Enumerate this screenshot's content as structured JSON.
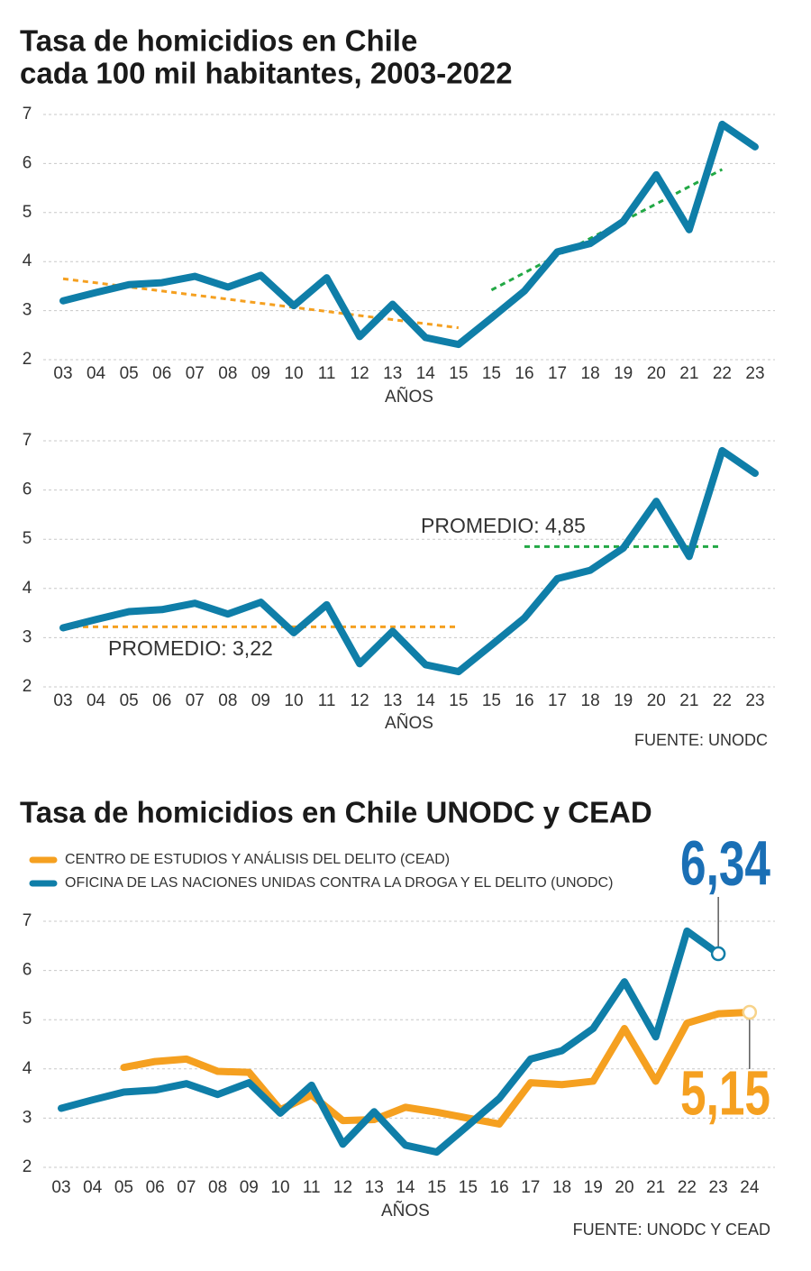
{
  "chart_data": [
    {
      "type": "line",
      "title": [
        "Tasa de homicidios en Chile",
        "cada 100 mil habitantes, 2003-2022"
      ],
      "xlabel": "AÑOS",
      "categories": [
        "03",
        "04",
        "05",
        "06",
        "07",
        "08",
        "09",
        "10",
        "11",
        "12",
        "13",
        "14",
        "15",
        "15",
        "16",
        "17",
        "18",
        "19",
        "20",
        "21",
        "22",
        "23"
      ],
      "series": [
        {
          "color": "#0f7ea8",
          "values": [
            3.2,
            3.37,
            3.53,
            3.57,
            3.7,
            3.48,
            3.72,
            3.1,
            3.67,
            2.47,
            3.13,
            2.45,
            2.31,
            2.85,
            3.4,
            4.2,
            4.37,
            4.82,
            5.77,
            4.65,
            6.8,
            6.34
          ]
        }
      ],
      "trend_lines": [
        {
          "color": "#f5a020",
          "from": 0,
          "to": 12,
          "values": [
            3.65,
            2.65
          ]
        },
        {
          "color": "#22a845",
          "from": 13,
          "to": 20,
          "values": [
            3.42,
            5.88
          ]
        }
      ],
      "ylim": [
        2,
        7
      ],
      "yticks": [
        2,
        3,
        4,
        5,
        6,
        7
      ],
      "grid": true
    },
    {
      "type": "line",
      "xlabel": "AÑOS",
      "categories": [
        "03",
        "04",
        "05",
        "06",
        "07",
        "08",
        "09",
        "10",
        "11",
        "12",
        "13",
        "14",
        "15",
        "15",
        "16",
        "17",
        "18",
        "19",
        "20",
        "21",
        "22",
        "23"
      ],
      "series": [
        {
          "color": "#0f7ea8",
          "values": [
            3.2,
            3.37,
            3.53,
            3.57,
            3.7,
            3.48,
            3.72,
            3.1,
            3.67,
            2.47,
            3.13,
            2.45,
            2.31,
            2.85,
            3.4,
            4.2,
            4.37,
            4.82,
            5.77,
            4.65,
            6.8,
            6.34
          ]
        }
      ],
      "averages": [
        {
          "label": "PROMEDIO: 3,22",
          "value": 3.22,
          "from": 0,
          "to": 12,
          "color": "#f5a020"
        },
        {
          "label": "PROMEDIO: 4,85",
          "value": 4.85,
          "from": 14,
          "to": 20,
          "color": "#22a845"
        }
      ],
      "source": "FUENTE: UNODC",
      "ylim": [
        2,
        7
      ],
      "yticks": [
        2,
        3,
        4,
        5,
        6,
        7
      ],
      "grid": true
    },
    {
      "type": "line",
      "title": "Tasa de homicidios en Chile UNODC y CEAD",
      "xlabel": "AÑOS",
      "categories": [
        "03",
        "04",
        "05",
        "06",
        "07",
        "08",
        "09",
        "10",
        "11",
        "12",
        "13",
        "14",
        "15",
        "15",
        "16",
        "17",
        "18",
        "19",
        "20",
        "21",
        "22",
        "23",
        "24"
      ],
      "series": [
        {
          "name": "CENTRO DE ESTUDIOS Y ANÁLISIS DEL DELITO (CEAD)",
          "color": "#f5a020",
          "values": [
            null,
            null,
            4.03,
            4.15,
            4.2,
            3.95,
            3.93,
            3.17,
            3.47,
            2.95,
            2.97,
            3.22,
            3.12,
            3.0,
            2.88,
            3.72,
            3.68,
            3.75,
            4.82,
            3.75,
            4.93,
            5.12,
            5.15
          ],
          "value_labels": [
            null,
            null,
            null,
            null,
            null,
            null,
            null,
            null,
            null,
            null,
            null,
            null,
            null,
            null,
            null,
            null,
            null,
            null,
            null,
            null,
            null,
            null,
            "5,15"
          ]
        },
        {
          "name": "OFICINA DE LAS NACIONES UNIDAS CONTRA LA DROGA Y EL DELITO (UNODC)",
          "color": "#0f7ea8",
          "values": [
            3.2,
            3.37,
            3.53,
            3.57,
            3.7,
            3.48,
            3.72,
            3.1,
            3.67,
            2.47,
            3.13,
            2.45,
            2.31,
            2.85,
            3.4,
            4.2,
            4.37,
            4.82,
            5.77,
            4.65,
            6.8,
            6.34,
            null
          ],
          "value_labels": [
            null,
            null,
            null,
            null,
            null,
            null,
            null,
            null,
            null,
            null,
            null,
            null,
            null,
            null,
            null,
            null,
            null,
            null,
            null,
            null,
            null,
            "6,34",
            null
          ]
        }
      ],
      "source": "FUENTE: UNODC Y CEAD",
      "ylim": [
        2,
        7
      ],
      "yticks": [
        2,
        3,
        4,
        5,
        6,
        7
      ],
      "grid": true
    }
  ]
}
